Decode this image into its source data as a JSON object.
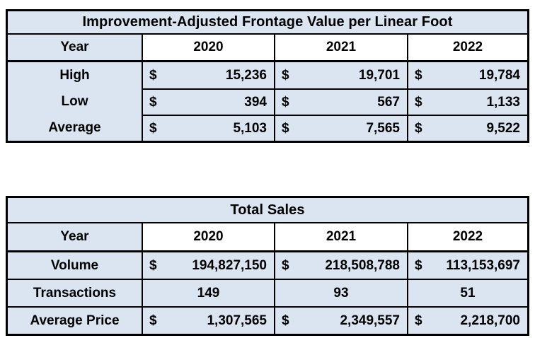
{
  "currency_symbol": "$",
  "colors": {
    "cell_background": "#dbe5f1",
    "year_header_background": "#ffffff",
    "border": "#000000",
    "text": "#000000",
    "page_background": "#ffffff"
  },
  "tables": [
    {
      "title": "Improvement-Adjusted Frontage Value per Linear Foot",
      "header": {
        "label": "Year",
        "years": [
          "2020",
          "2021",
          "2022"
        ]
      },
      "rows": [
        {
          "label": "High",
          "format": "currency",
          "values": [
            "15,236",
            "19,701",
            "19,784"
          ]
        },
        {
          "label": "Low",
          "format": "currency",
          "values": [
            "394",
            "567",
            "1,133"
          ]
        },
        {
          "label": "Average",
          "format": "currency",
          "values": [
            "5,103",
            "7,565",
            "9,522"
          ]
        }
      ]
    },
    {
      "title": "Total Sales",
      "header": {
        "label": "Year",
        "years": [
          "2020",
          "2021",
          "2022"
        ]
      },
      "rows": [
        {
          "label": "Volume",
          "format": "currency",
          "values": [
            "194,827,150",
            "218,508,788",
            "113,153,697"
          ]
        },
        {
          "label": "Transactions",
          "format": "plain",
          "values": [
            "149",
            "93",
            "51"
          ]
        },
        {
          "label": "Average Price",
          "format": "currency",
          "values": [
            "1,307,565",
            "2,349,557",
            "2,218,700"
          ]
        }
      ]
    }
  ]
}
